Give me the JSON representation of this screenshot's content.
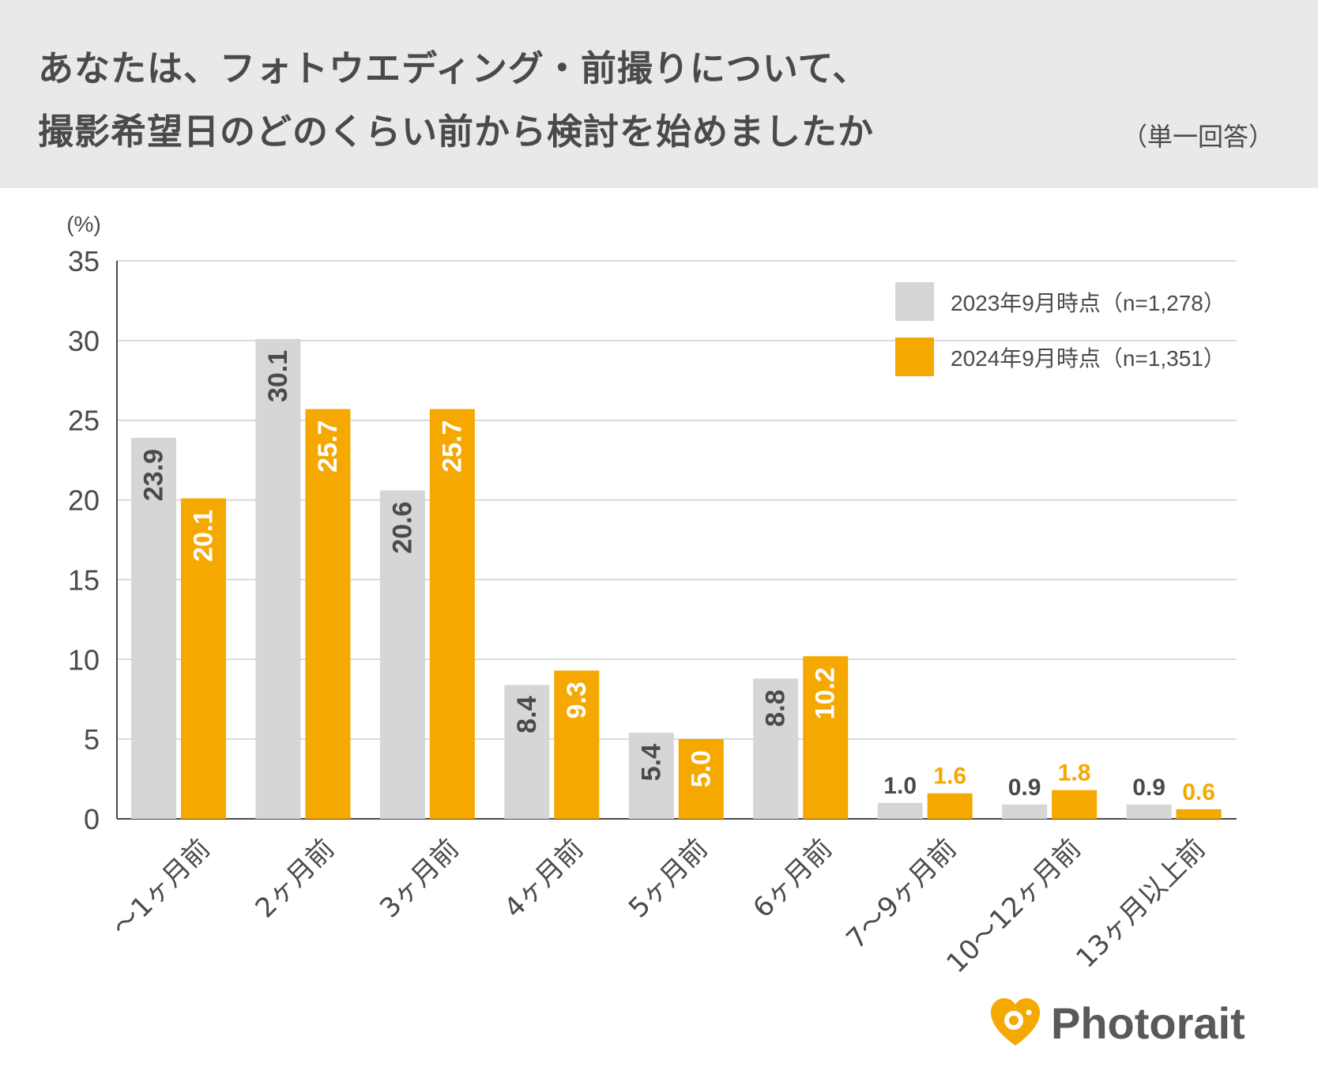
{
  "header": {
    "title_line1": "あなたは、フォトウエディング・前撮りについて、",
    "title_line2": "撮影希望日のどのくらい前から検討を始めましたか",
    "subtitle": "（単一回答）"
  },
  "chart_data": {
    "type": "bar",
    "title": "あなたは、フォトウエディング・前撮りについて、撮影希望日のどのくらい前から検討を始めましたか",
    "ylabel": "(%)",
    "xlabel": "",
    "ylim": [
      0,
      35
    ],
    "yticks": [
      0,
      5,
      10,
      15,
      20,
      25,
      30,
      35
    ],
    "grid": true,
    "legend_position": "top-right",
    "categories": [
      "〜1ヶ月前",
      "2ヶ月前",
      "3ヶ月前",
      "4ヶ月前",
      "5ヶ月前",
      "6ヶ月前",
      "7〜9ヶ月前",
      "10〜12ヶ月前",
      "13ヶ月以上前"
    ],
    "series": [
      {
        "name": "2023年9月時点（n=1,278）",
        "color": "#d6d6d6",
        "label_color": "#4a4a4a",
        "values": [
          23.9,
          30.1,
          20.6,
          8.4,
          5.4,
          8.8,
          1.0,
          0.9,
          0.9
        ]
      },
      {
        "name": "2024年9月時点（n=1,351）",
        "color": "#f5a800",
        "label_color": "#ffffff",
        "outside_label_color": "#f5a800",
        "values": [
          20.1,
          25.7,
          25.7,
          9.3,
          5.0,
          10.2,
          1.6,
          1.8,
          0.6
        ]
      }
    ],
    "value_labels": [
      [
        "23.9",
        "30.1",
        "20.6",
        "8.4",
        "5.4",
        "8.8",
        "1.0",
        "0.9",
        "0.9"
      ],
      [
        "20.1",
        "25.7",
        "25.7",
        "9.3",
        "5.0",
        "10.2",
        "1.6",
        "1.8",
        "0.6"
      ]
    ]
  },
  "logo": {
    "text": "Photorait",
    "icon": "heart-camera-icon",
    "color": "#f5a800"
  }
}
